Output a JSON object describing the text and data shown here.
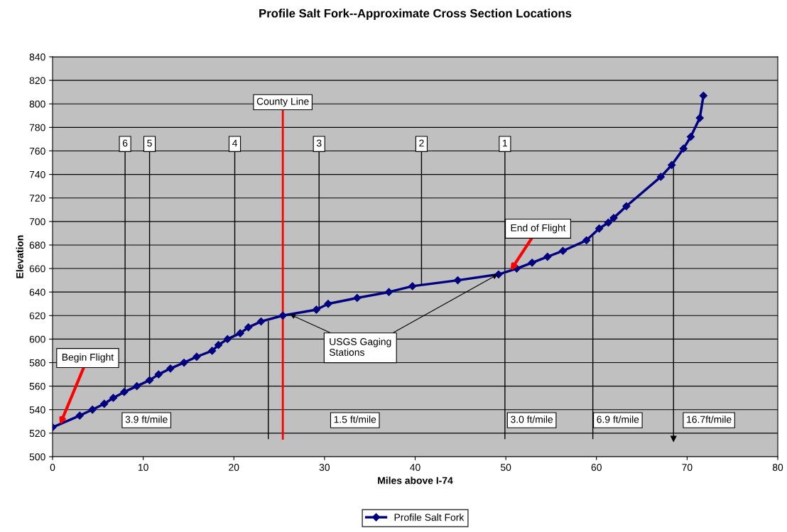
{
  "chart_data": {
    "type": "line",
    "title": "Profile Salt Fork--Approximate Cross Section Locations",
    "xlabel": "Miles above I-74",
    "ylabel": "Elevation",
    "xlim": [
      0,
      80
    ],
    "xticks": [
      0,
      10,
      20,
      30,
      40,
      50,
      60,
      70,
      80
    ],
    "ylim": [
      500,
      840
    ],
    "yticks": [
      500,
      520,
      540,
      560,
      580,
      600,
      620,
      640,
      660,
      680,
      700,
      720,
      740,
      760,
      780,
      800,
      820,
      840
    ],
    "grid": "y",
    "legend": "bottom",
    "marker": "diamond",
    "line_style": "solid",
    "series": [
      {
        "name": "Profile Salt Fork",
        "color": "#000080",
        "x": [
          0,
          3.0,
          4.4,
          5.7,
          6.7,
          7.9,
          9.3,
          10.7,
          11.7,
          13.0,
          14.5,
          15.9,
          17.6,
          18.3,
          19.3,
          20.7,
          21.6,
          23.0,
          25.4,
          29.1,
          30.4,
          33.6,
          37.1,
          39.7,
          44.7,
          49.2,
          51.2,
          52.9,
          54.6,
          56.3,
          58.9,
          60.3,
          61.3,
          61.9,
          63.3,
          67.1,
          68.3,
          69.6,
          70.4,
          71.4,
          71.8
        ],
        "values": [
          525,
          535,
          540,
          545,
          550,
          555,
          560,
          565,
          570,
          575,
          580,
          585,
          590,
          595,
          600,
          605,
          610,
          615,
          620,
          625,
          630,
          635,
          640,
          645,
          650,
          655,
          660,
          665,
          670,
          675,
          684,
          694,
          699,
          703,
          713,
          738,
          748,
          762,
          772,
          788,
          807
        ]
      }
    ],
    "ref_lines": [
      {
        "axis": "x",
        "value": 25.4,
        "label": "County Line",
        "color": "#ff0000"
      },
      {
        "axis": "x",
        "value": 23.8
      },
      {
        "axis": "x",
        "value": 49.9
      },
      {
        "axis": "x",
        "value": 59.6
      },
      {
        "axis": "x",
        "value": 68.5
      }
    ],
    "annotations": [
      {
        "text": "Begin Flight",
        "x": 0.8,
        "y": 527
      },
      {
        "text": "End of Flight",
        "x": 50.5,
        "y": 658
      },
      {
        "text": "USGS Gaging Stations",
        "x": 26.2,
        "y": 621
      },
      {
        "text": "6",
        "x": 8.0,
        "y": 556
      },
      {
        "text": "5",
        "x": 10.7,
        "y": 565
      },
      {
        "text": "4",
        "x": 20.1,
        "y": 603
      },
      {
        "text": "3",
        "x": 29.4,
        "y": 626
      },
      {
        "text": "2",
        "x": 40.7,
        "y": 646
      },
      {
        "text": "1",
        "x": 49.9,
        "y": 657
      },
      "3.9 ft/mile",
      "1.5 ft/mile",
      "3.0 ft/mile",
      "6.9 ft/mile",
      "16.7ft/mile"
    ]
  }
}
